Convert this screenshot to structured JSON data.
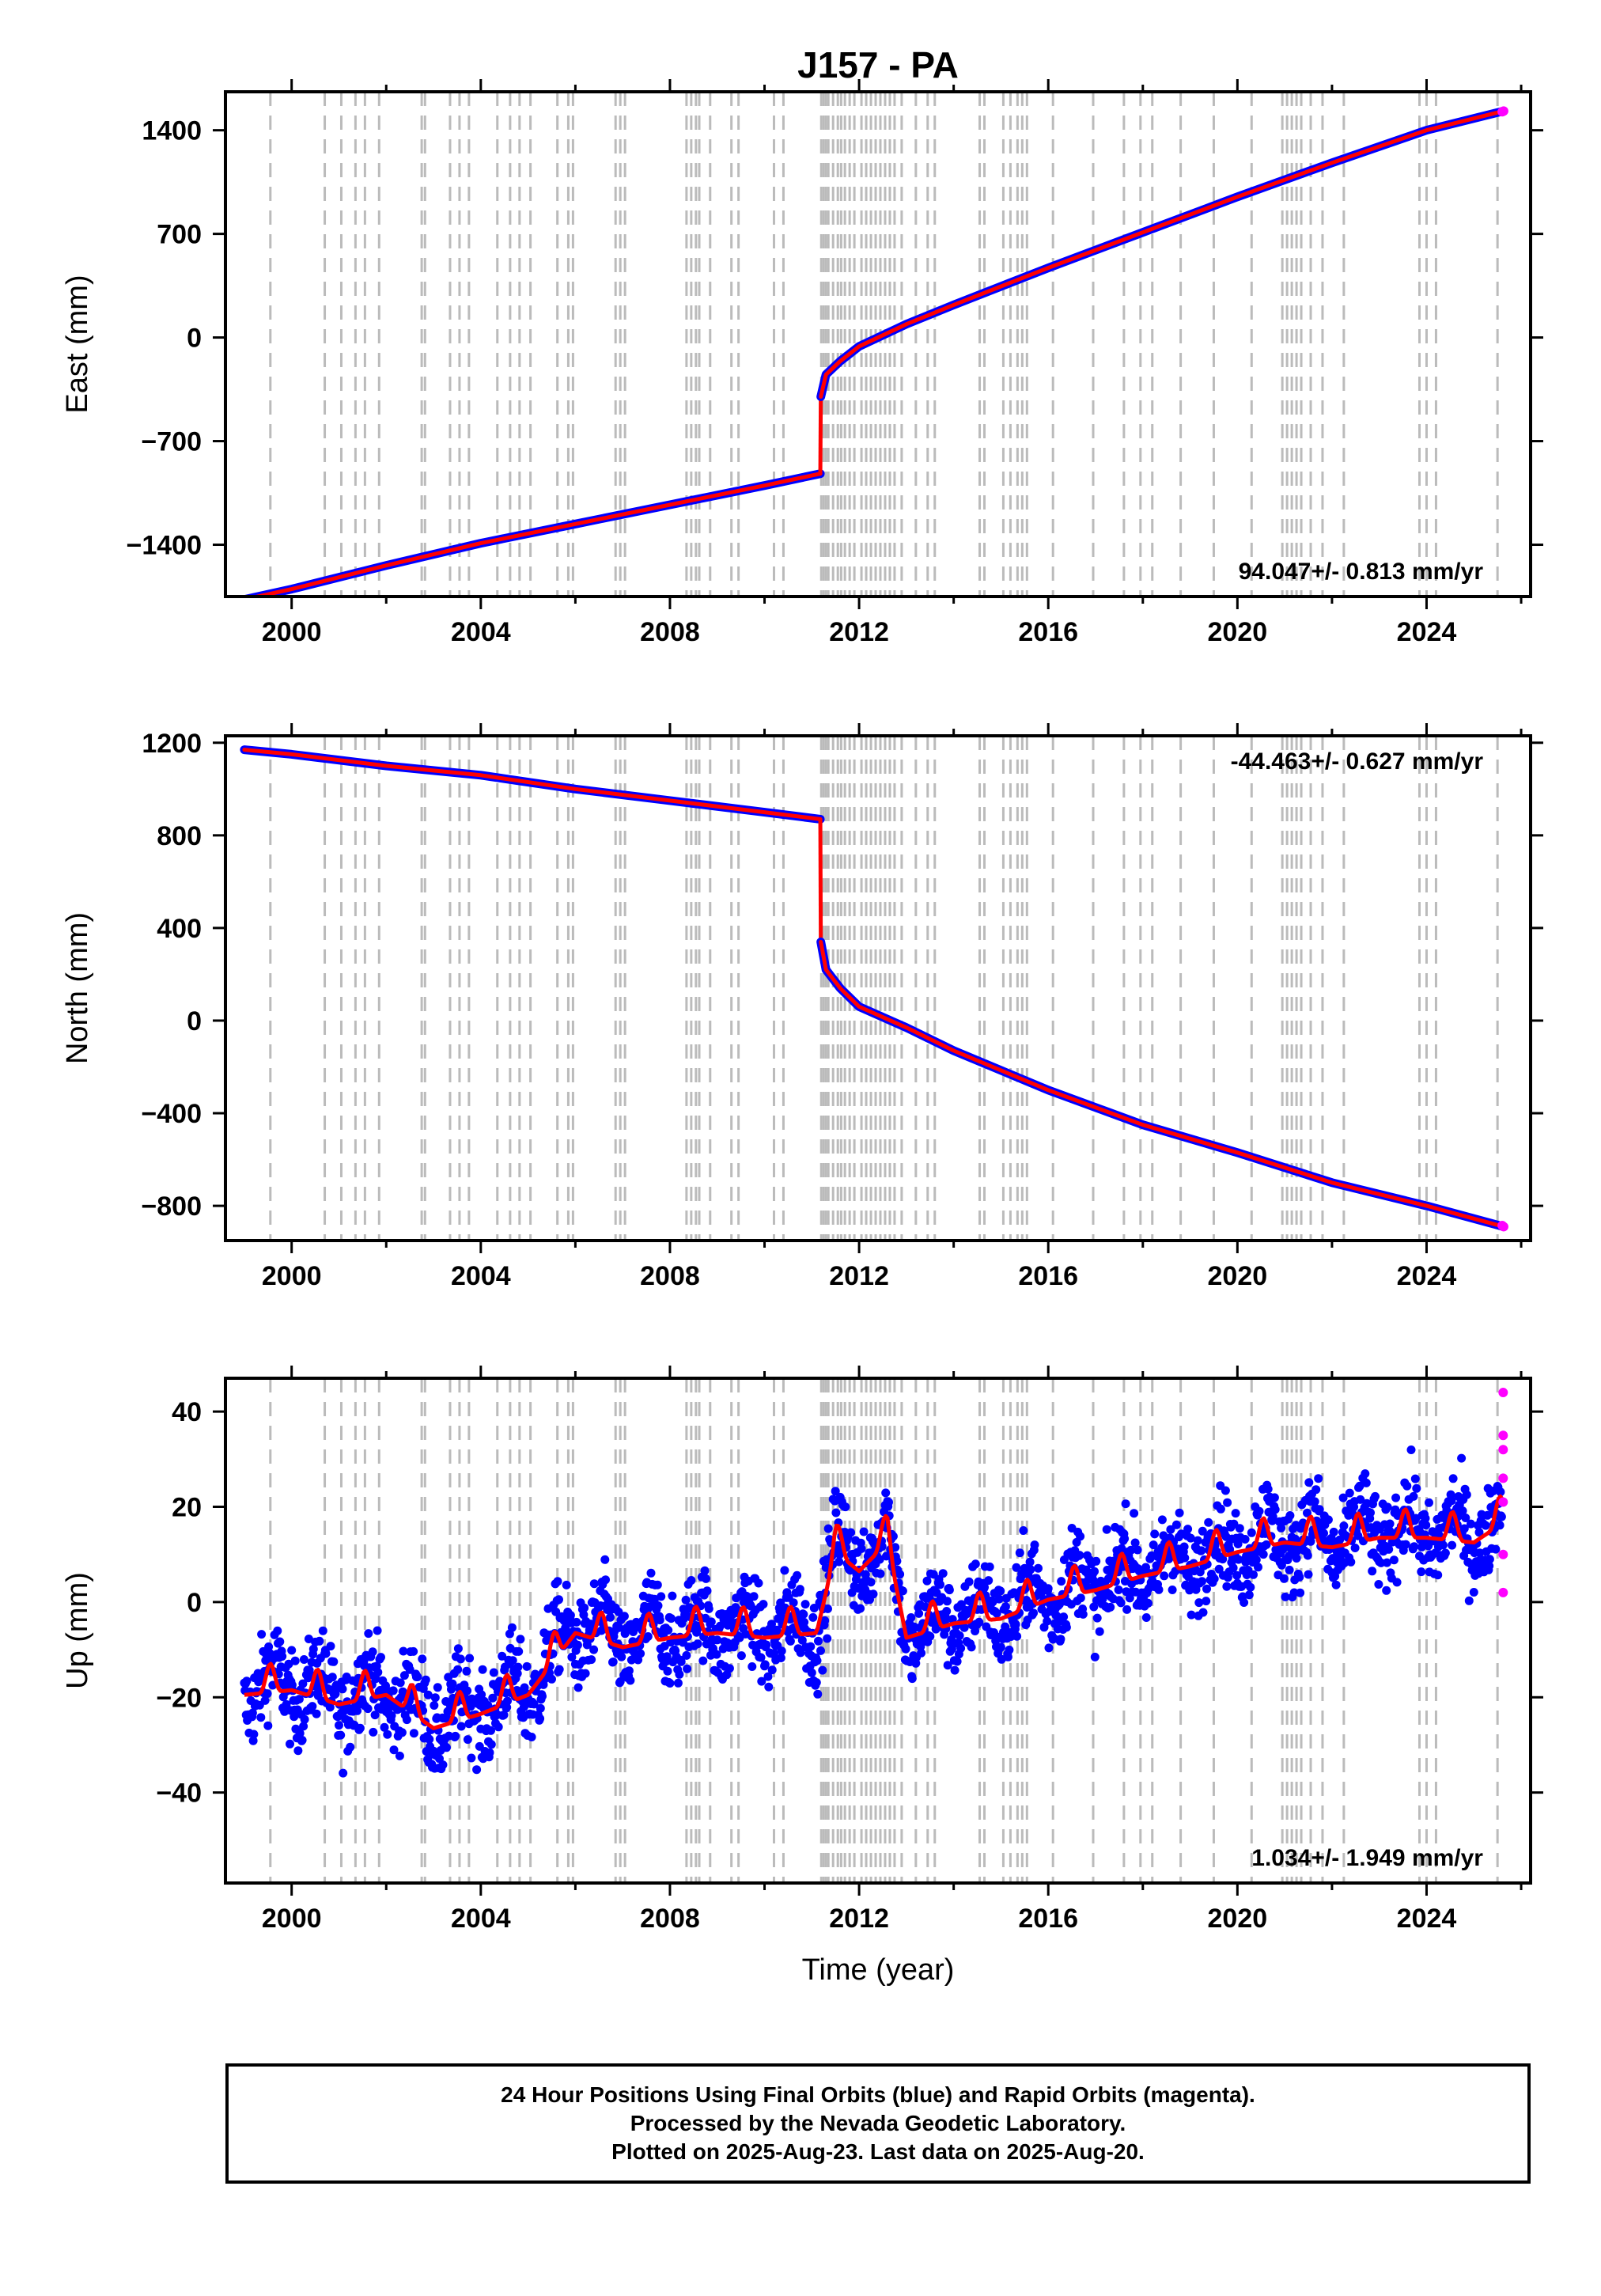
{
  "chart_data": [
    {
      "type": "scatter",
      "title": "J157 - PA",
      "ylabel": "East (mm)",
      "xlabel": "",
      "xlim": [
        1998.6,
        2026.2
      ],
      "ylim": [
        -1750,
        1660
      ],
      "xticks": [
        2000,
        2004,
        2008,
        2012,
        2016,
        2020,
        2024
      ],
      "yticks": [
        -1400,
        -700,
        0,
        700,
        1400
      ],
      "ytick_labels": [
        "−1400",
        "−700",
        "0",
        "700",
        "1400"
      ],
      "rate_text": "94.047+/- 0.813 mm/yr",
      "series": [
        {
          "kind": "final",
          "color": "#0000ff",
          "x": [
            1999.0,
            2000.0,
            2002.0,
            2004.0,
            2006.0,
            2008.0,
            2010.0,
            2011.18
          ],
          "values": [
            -1770,
            -1700,
            -1540,
            -1390,
            -1260,
            -1130,
            -1000,
            -920
          ]
        },
        {
          "kind": "final",
          "color": "#0000ff",
          "x": [
            2011.19,
            2011.3,
            2011.6,
            2012.0,
            2013.0,
            2014.0,
            2016.0,
            2018.0,
            2020.0,
            2022.0,
            2024.0,
            2025.63
          ],
          "values": [
            -400,
            -250,
            -160,
            -60,
            90,
            220,
            470,
            710,
            950,
            1180,
            1400,
            1530
          ]
        },
        {
          "kind": "rapid",
          "color": "#ff00ff",
          "x": [
            2025.6,
            2025.63
          ],
          "values": [
            1525,
            1530
          ]
        }
      ]
    },
    {
      "type": "scatter",
      "title": "",
      "ylabel": "North (mm)",
      "xlabel": "",
      "xlim": [
        1998.6,
        2026.2
      ],
      "ylim": [
        -950,
        1230
      ],
      "xticks": [
        2000,
        2004,
        2008,
        2012,
        2016,
        2020,
        2024
      ],
      "yticks": [
        -800,
        -400,
        0,
        400,
        800,
        1200
      ],
      "ytick_labels": [
        "−800",
        "−400",
        "0",
        "400",
        "800",
        "1200"
      ],
      "rate_text": "-44.463+/- 0.627 mm/yr",
      "series": [
        {
          "kind": "final",
          "color": "#0000ff",
          "x": [
            1999.0,
            2000.0,
            2002.0,
            2004.0,
            2006.0,
            2008.0,
            2010.0,
            2011.18
          ],
          "values": [
            1170,
            1150,
            1100,
            1060,
            1000,
            950,
            900,
            870
          ]
        },
        {
          "kind": "final",
          "color": "#0000ff",
          "x": [
            2011.19,
            2011.3,
            2011.6,
            2012.0,
            2013.0,
            2014.0,
            2016.0,
            2018.0,
            2020.0,
            2022.0,
            2024.0,
            2025.63
          ],
          "values": [
            340,
            220,
            140,
            60,
            -30,
            -130,
            -300,
            -450,
            -570,
            -700,
            -800,
            -890
          ]
        },
        {
          "kind": "rapid",
          "color": "#ff00ff",
          "x": [
            2025.6,
            2025.63
          ],
          "values": [
            -885,
            -890
          ]
        }
      ]
    },
    {
      "type": "scatter",
      "title": "",
      "ylabel": "Up (mm)",
      "xlabel": "Time (year)",
      "xlim": [
        1998.6,
        2026.2
      ],
      "ylim": [
        -59,
        47
      ],
      "xticks": [
        2000,
        2004,
        2008,
        2012,
        2016,
        2020,
        2024
      ],
      "yticks": [
        -40,
        -20,
        0,
        20,
        40
      ],
      "ytick_labels": [
        "−40",
        "−20",
        "0",
        "20",
        "40"
      ],
      "rate_text": "1.034+/- 1.949 mm/yr",
      "series": [
        {
          "kind": "final",
          "color": "#0000ff",
          "x": [
            1999.0,
            2000.0,
            2001.0,
            2002.0,
            2003.0,
            2004.0,
            2005.0,
            2006.0,
            2007.0,
            2008.0,
            2009.0,
            2010.0,
            2011.1,
            2011.5,
            2012.0,
            2012.6,
            2013.0,
            2014.0,
            2015.0,
            2016.0,
            2017.0,
            2018.0,
            2019.0,
            2020.0,
            2021.0,
            2022.0,
            2023.0,
            2024.0,
            2025.0,
            2025.6
          ],
          "values": [
            -18,
            -17,
            -20,
            -18,
            -25,
            -22,
            -18,
            -5,
            -8,
            -6,
            -5,
            -6,
            -5,
            12,
            8,
            14,
            -6,
            -3,
            -2,
            2,
            4,
            7,
            9,
            12,
            14,
            13,
            15,
            15,
            14,
            18
          ]
        },
        {
          "kind": "rapid",
          "color": "#ff00ff",
          "x": [
            2025.62,
            2025.62,
            2025.62,
            2025.62,
            2025.62,
            2025.62,
            2025.62
          ],
          "values": [
            44,
            35,
            32,
            26,
            21,
            10,
            2
          ]
        }
      ]
    }
  ],
  "footer": {
    "line1": "24 Hour Positions Using Final Orbits (blue) and Rapid Orbits (magenta).",
    "line2": "Processed by the Nevada Geodetic Laboratory.",
    "line3": "Plotted on 2025-Aug-23. Last data on 2025-Aug-20."
  },
  "colors": {
    "final_orbits": "#0000ff",
    "rapid_orbits": "#ff00ff",
    "model": "#ff0000",
    "event_lines": "#bbbbbb"
  },
  "event_years": [
    1999.55,
    2000.7,
    2001.05,
    2001.35,
    2001.55,
    2001.85,
    2002.75,
    2002.82,
    2003.35,
    2003.55,
    2003.75,
    2004.35,
    2004.62,
    2004.82,
    2005.05,
    2005.62,
    2005.85,
    2005.95,
    2006.85,
    2006.95,
    2007.05,
    2008.35,
    2008.45,
    2008.55,
    2008.62,
    2008.85,
    2009.3,
    2009.45,
    2010.2,
    2010.4,
    2011.2,
    2011.25,
    2011.3,
    2011.35,
    2011.45,
    2011.55,
    2011.62,
    2011.7,
    2011.8,
    2011.9,
    2012.05,
    2012.15,
    2012.25,
    2012.35,
    2012.45,
    2012.55,
    2012.65,
    2012.75,
    2012.9,
    2013.2,
    2013.45,
    2013.6,
    2014.55,
    2014.65,
    2015.05,
    2015.2,
    2015.35,
    2015.45,
    2015.55,
    2016.1,
    2016.95,
    2017.6,
    2017.95,
    2018.2,
    2018.8,
    2019.5,
    2020.3,
    2020.95,
    2021.05,
    2021.15,
    2021.25,
    2021.35,
    2021.55,
    2021.8,
    2022.25,
    2023.85,
    2024.0,
    2024.2,
    2025.5
  ]
}
